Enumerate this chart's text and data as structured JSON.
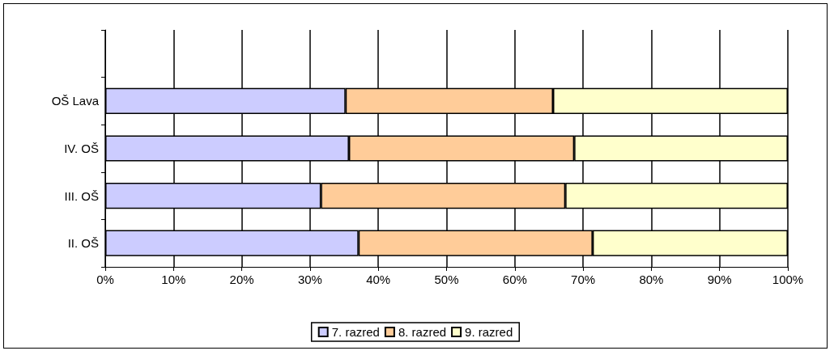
{
  "chart_data": {
    "type": "bar",
    "orientation": "horizontal",
    "stacked": true,
    "categories": [
      null,
      "OŠ Lava",
      "IV. OŠ",
      "III. OŠ",
      "II. OŠ"
    ],
    "series": [
      {
        "name": "7. razred",
        "color": "#ccccff",
        "values": [
          null,
          35.2,
          35.7,
          31.6,
          37.1
        ]
      },
      {
        "name": "8. razred",
        "color": "#ffcc99",
        "values": [
          null,
          30.4,
          33.0,
          35.8,
          34.3
        ]
      },
      {
        "name": "9. razred",
        "color": "#ffffcc",
        "values": [
          null,
          34.4,
          31.3,
          32.6,
          28.6
        ]
      }
    ],
    "xlim": [
      0,
      100
    ],
    "xticks": [
      {
        "value": 0,
        "label": "0%"
      },
      {
        "value": 10,
        "label": "10%"
      },
      {
        "value": 20,
        "label": "20%"
      },
      {
        "value": 30,
        "label": "30%"
      },
      {
        "value": 40,
        "label": "40%"
      },
      {
        "value": 50,
        "label": "50%"
      },
      {
        "value": 60,
        "label": "60%"
      },
      {
        "value": 70,
        "label": "70%"
      },
      {
        "value": 80,
        "label": "80%"
      },
      {
        "value": 90,
        "label": "90%"
      },
      {
        "value": 100,
        "label": "100%"
      }
    ],
    "grid": "x",
    "legend": "bottom"
  }
}
